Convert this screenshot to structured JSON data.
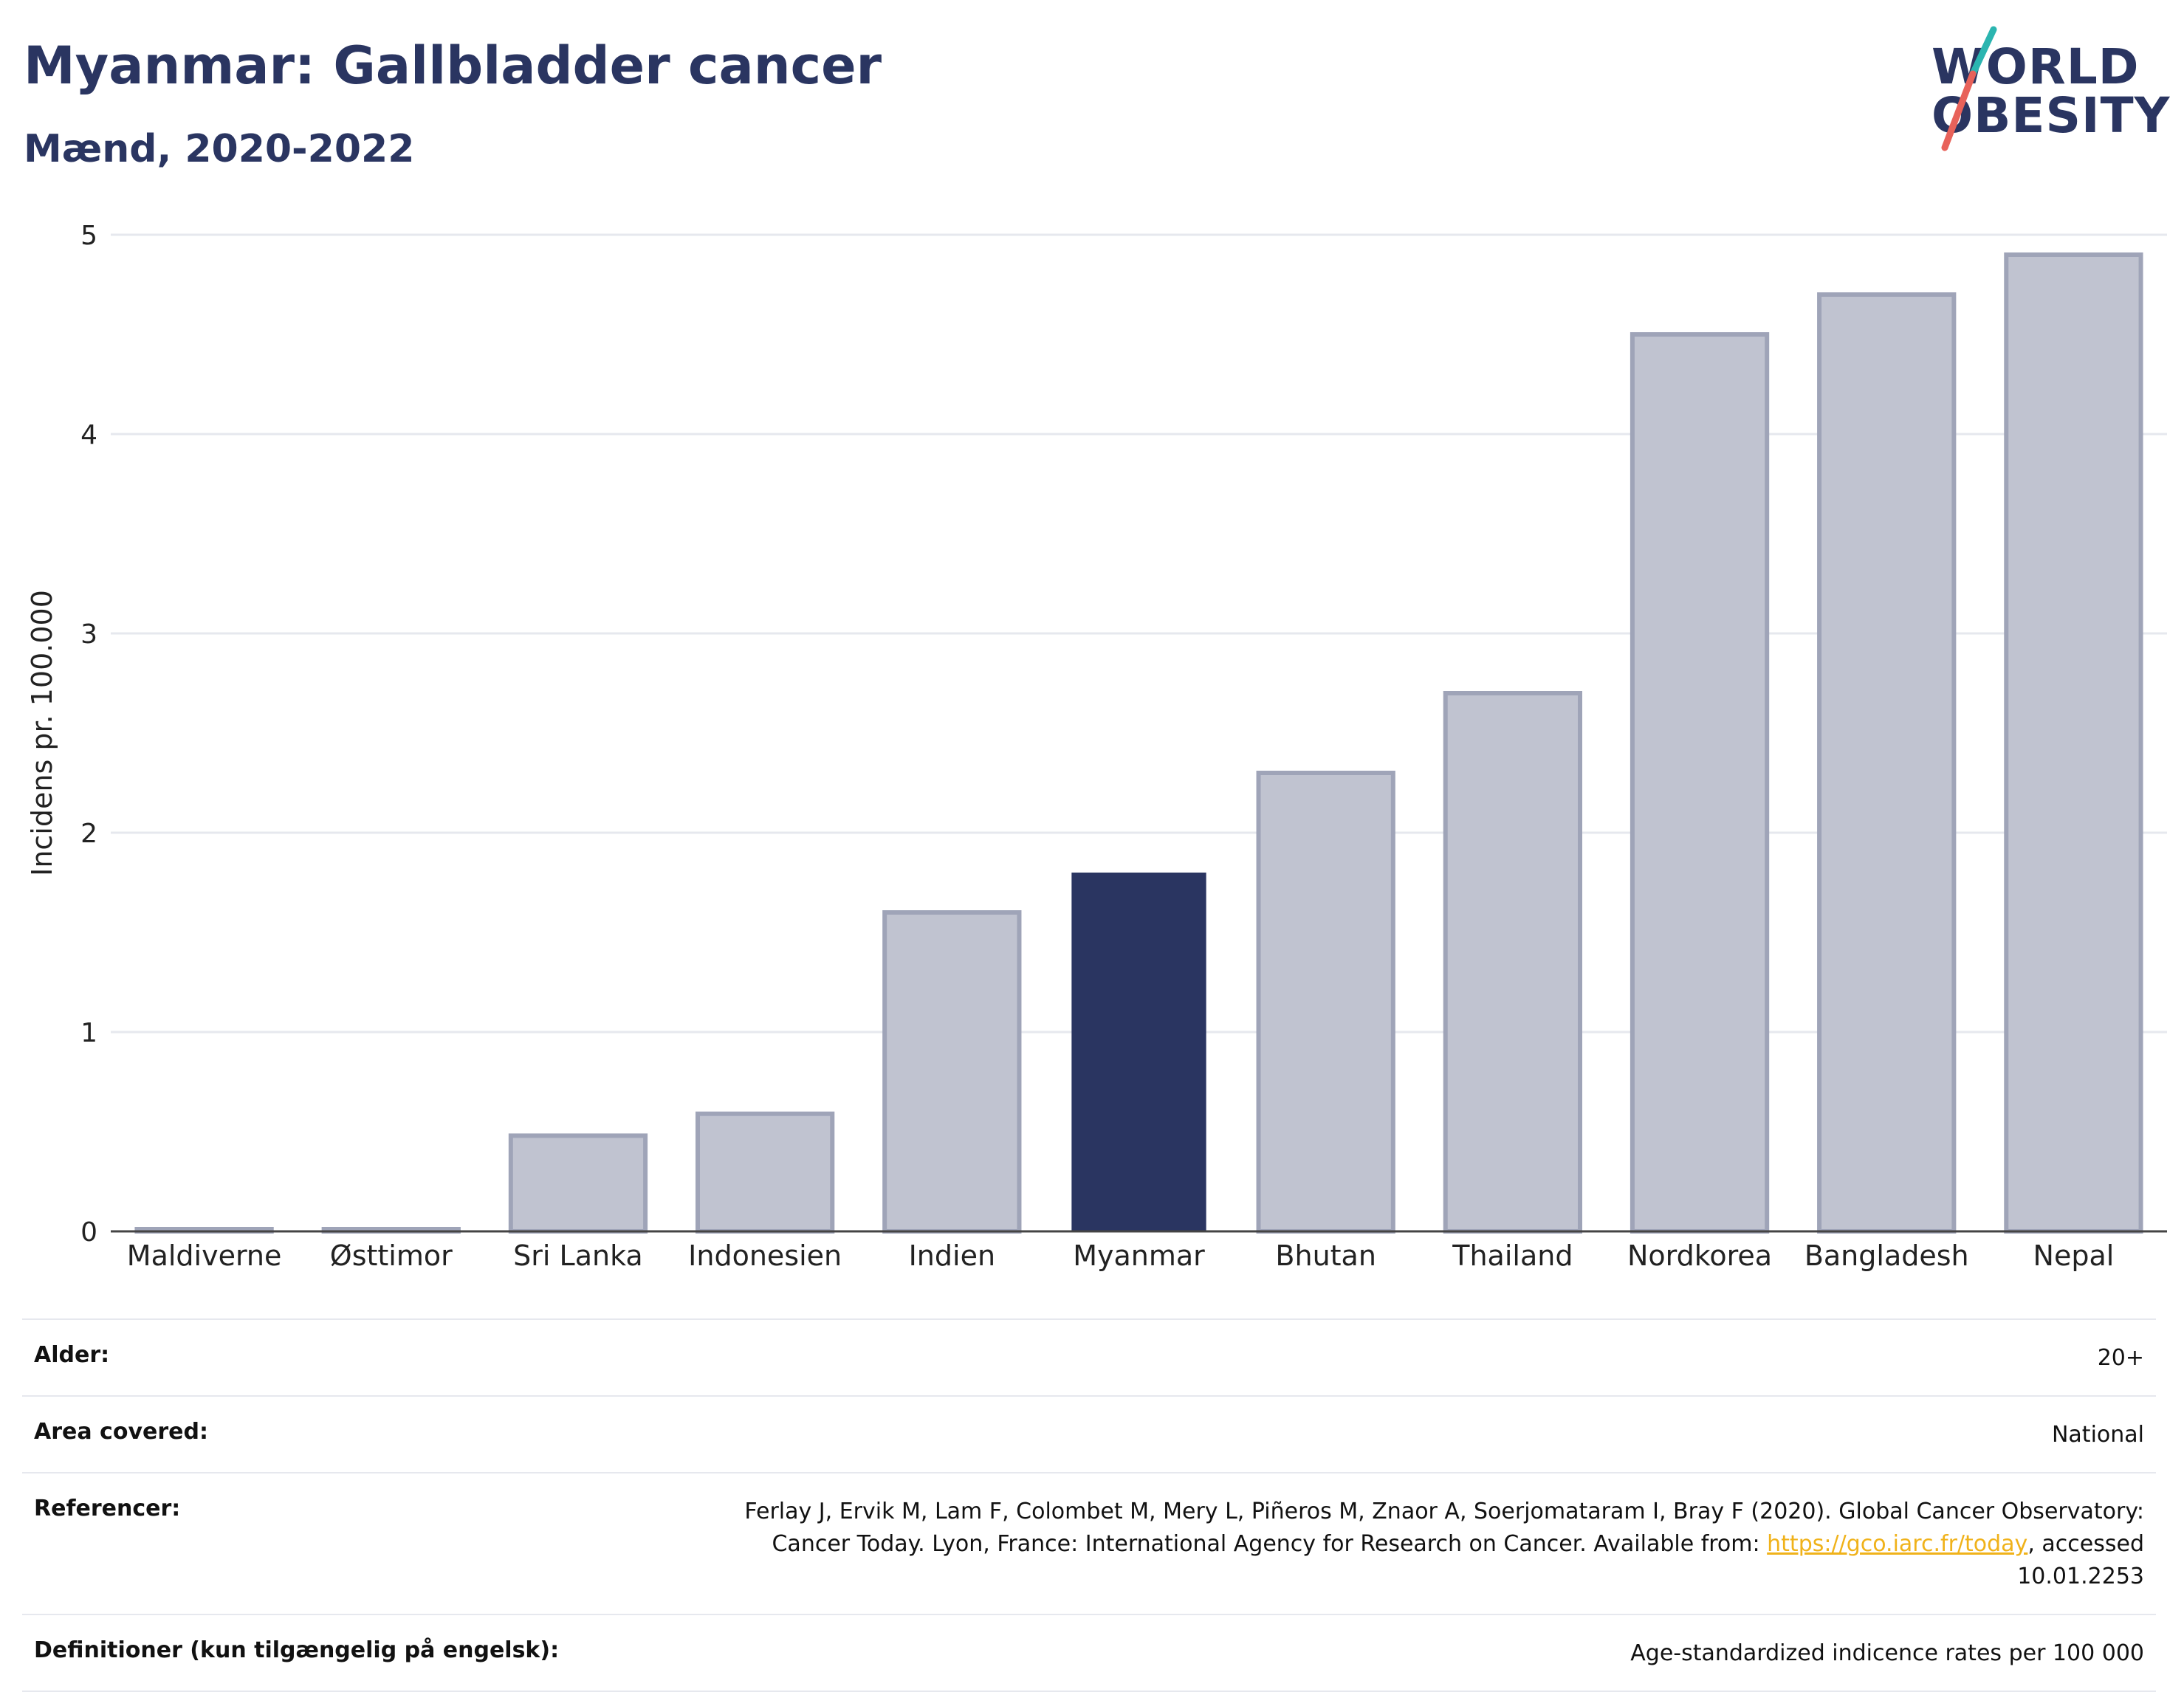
{
  "header": {
    "title": "Myanmar: Gallbladder cancer",
    "subtitle": "Mænd, 2020-2022"
  },
  "logo": {
    "line1": "WORLD",
    "line2": "OBESITY",
    "accent_teal": "#2bb5b0",
    "accent_red": "#e8625a"
  },
  "chart_data": {
    "type": "bar",
    "categories": [
      "Maldiverne",
      "Østtimor",
      "Sri Lanka",
      "Indonesien",
      "Indien",
      "Myanmar",
      "Bhutan",
      "Thailand",
      "Nordkorea",
      "Bangladesh",
      "Nepal"
    ],
    "values": [
      0.0,
      0.0,
      0.48,
      0.59,
      1.6,
      1.8,
      2.3,
      2.7,
      4.5,
      4.7,
      4.9
    ],
    "highlight": "Myanmar",
    "ylabel": "Incidens pr. 100.000",
    "xlabel": "",
    "ylim": [
      0,
      5
    ],
    "yticks": [
      0,
      1,
      2,
      3,
      4,
      5
    ],
    "grid": true,
    "colors": {
      "bar": "#c0c3d0",
      "bar_edge": "#9fa4b8",
      "highlight": "#2a3561",
      "grid": "#e6e8ee",
      "axis": "#444444"
    }
  },
  "info": {
    "rows": [
      {
        "key": "Alder:",
        "value": "20+"
      },
      {
        "key": "Area covered:",
        "value": "National"
      },
      {
        "key": "Referencer:",
        "value_parts": {
          "before": "Ferlay J, Ervik M, Lam F, Colombet M, Mery L, Piñeros M, Znaor A, Soerjomataram I, Bray F (2020). Global Cancer Observatory: Cancer Today. Lyon, France: International Agency for Research on Cancer. Available from: ",
          "link": "https://gco.iarc.fr/today",
          "after": ", accessed 10.01.2253"
        }
      },
      {
        "key": "Definitioner (kun tilgængelig på engelsk):",
        "value": "Age-standardized indicence rates per 100 000"
      }
    ]
  }
}
